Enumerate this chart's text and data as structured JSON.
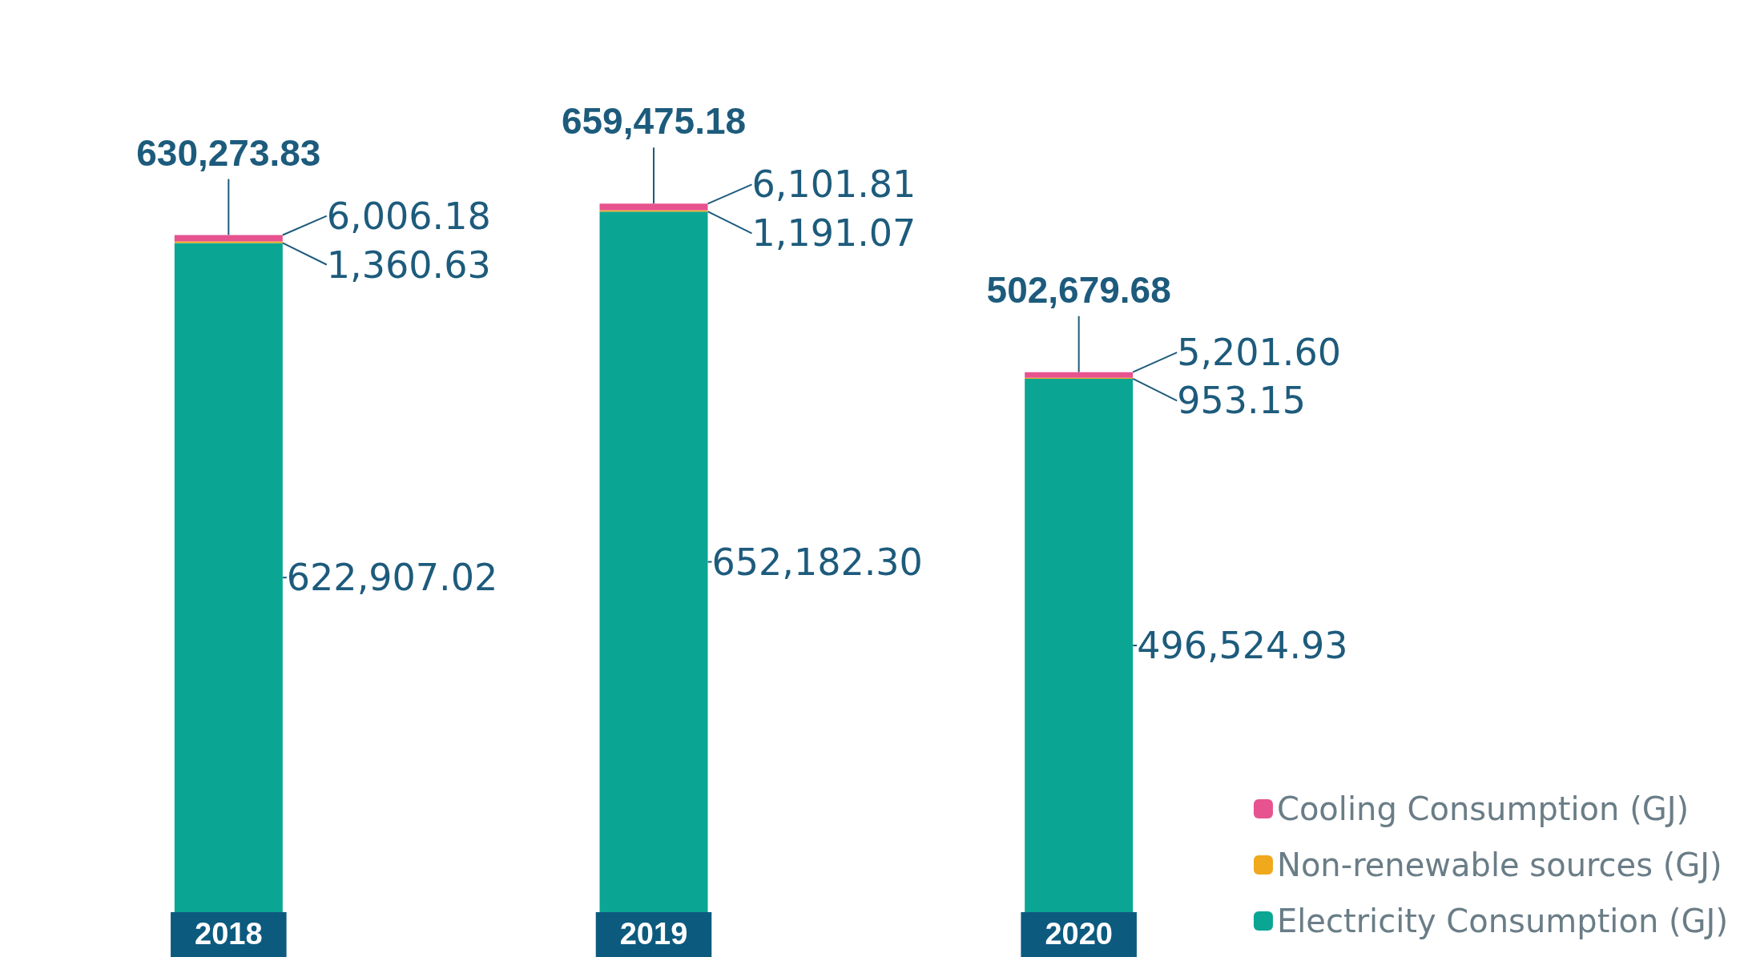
{
  "chart_data": {
    "type": "bar",
    "stacked": true,
    "categories": [
      "2018",
      "2019",
      "2020"
    ],
    "series": [
      {
        "name": "Electricity Consumption (GJ)",
        "color": "#0aa693",
        "values": [
          622907.02,
          652182.3,
          496524.93
        ],
        "value_labels": [
          "622,907.02",
          "652,182.30",
          "496,524.93"
        ]
      },
      {
        "name": "Non-renewable sources (GJ)",
        "color": "#f0a81c",
        "values": [
          1360.63,
          1191.07,
          953.15
        ],
        "value_labels": [
          "1,360.63",
          "1,191.07",
          "953.15"
        ]
      },
      {
        "name": "Cooling Consumption (GJ)",
        "color": "#e6538f",
        "values": [
          6006.18,
          6101.81,
          5201.6
        ],
        "value_labels": [
          "6,006.18",
          "6,101.81",
          "5,201.60"
        ]
      }
    ],
    "totals": [
      "630,273.83",
      "659,475.18",
      "502,679.68"
    ],
    "legend": "bottom right"
  }
}
